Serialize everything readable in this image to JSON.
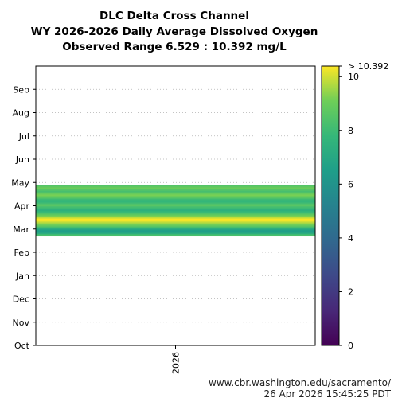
{
  "chart_data": {
    "type": "heatmap",
    "title_lines": [
      "DLC Delta Cross Channel",
      "WY 2026-2026 Daily Average Dissolved Oxygen",
      "Observed Range 6.529 : 10.392 mg/L"
    ],
    "x_categories": [
      "2026"
    ],
    "y_tick_labels": [
      "Oct",
      "Nov",
      "Dec",
      "Jan",
      "Feb",
      "Mar",
      "Apr",
      "May",
      "Jun",
      "Jul",
      "Aug",
      "Sep"
    ],
    "colorbar": {
      "min": 0,
      "max": 10.392,
      "max_label": "> 10.392",
      "ticks": [
        0,
        2,
        4,
        6,
        8,
        10
      ],
      "colormap": "viridis"
    },
    "observed_range": [
      6.529,
      10.392
    ],
    "data_month_span": [
      4.7,
      6.85
    ],
    "series": [
      {
        "x": "2026",
        "month_position": [
          4.7,
          4.75,
          4.8,
          4.85,
          4.9,
          4.95,
          5.0,
          5.05,
          5.1,
          5.15,
          5.2,
          5.25,
          5.3,
          5.35,
          5.4,
          5.45,
          5.5,
          5.55,
          5.6,
          5.65,
          5.7,
          5.75,
          5.8,
          5.85,
          5.9,
          5.95,
          6.0,
          6.05,
          6.1,
          6.15,
          6.2,
          6.25,
          6.3,
          6.35,
          6.4,
          6.45,
          6.5,
          6.55,
          6.6,
          6.65,
          6.7,
          6.75,
          6.8,
          6.85
        ],
        "values": [
          8.6,
          8.0,
          7.3,
          6.7,
          6.53,
          6.7,
          7.3,
          8.0,
          8.6,
          8.9,
          9.3,
          9.6,
          10.0,
          10.3,
          10.39,
          10.1,
          9.7,
          9.2,
          8.8,
          8.4,
          8.0,
          7.7,
          7.4,
          7.7,
          8.0,
          8.3,
          8.6,
          8.4,
          8.1,
          7.8,
          7.6,
          7.9,
          8.3,
          8.7,
          9.0,
          9.2,
          8.9,
          8.5,
          8.2,
          8.4,
          8.7,
          9.0,
          8.8,
          8.5
        ]
      }
    ]
  },
  "footer": {
    "url": "www.cbr.washington.edu/sacramento/",
    "timestamp": "26 Apr 2026 15:45:25 PDT"
  }
}
